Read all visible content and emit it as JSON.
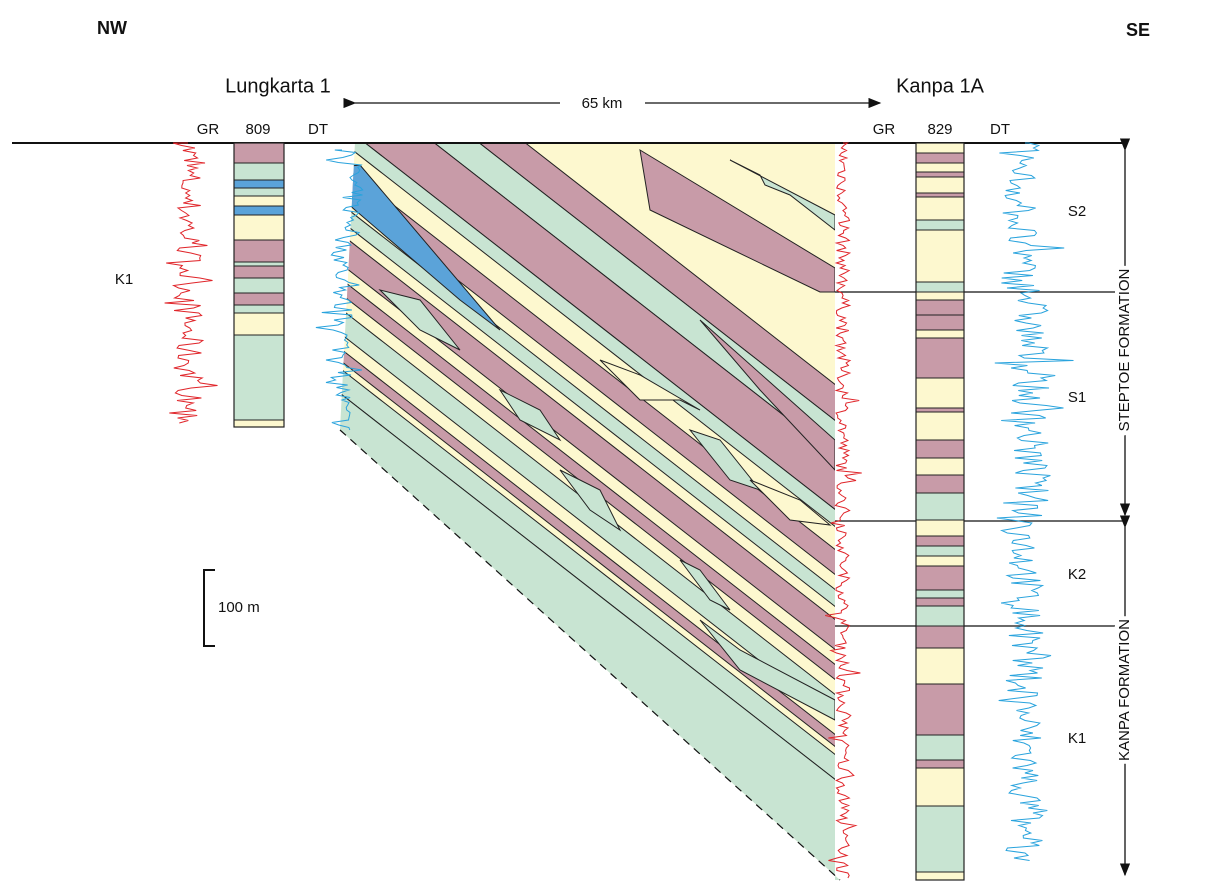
{
  "header": {
    "left": "NW",
    "right": "SE"
  },
  "wells": [
    {
      "name": "Lungkarta 1",
      "gr": "GR",
      "code": "809",
      "dt": "DT"
    },
    {
      "name": "Kanpa 1A",
      "gr": "GR",
      "code": "829",
      "dt": "DT"
    }
  ],
  "distance": "65 km",
  "units_left": [
    "K1"
  ],
  "units_right": [
    "S2",
    "S1",
    "K2",
    "K1"
  ],
  "formations": [
    "STEPTOE FORMATION",
    "KANPA FORMATION"
  ],
  "scale": "100 m"
}
